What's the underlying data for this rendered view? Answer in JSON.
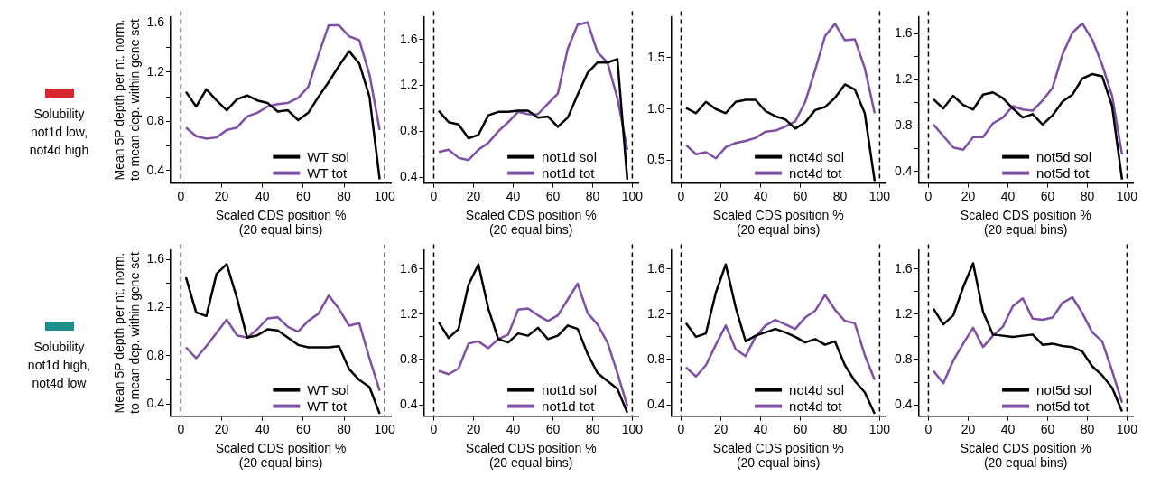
{
  "chart_data": [
    {
      "type": "line",
      "ylabel": "Mean 5P depth per nt, norm.\nto mean dep. within gene set",
      "xlabel": "Scaled CDS position %\n(20 equal bins)",
      "annotations": [
        "Solubility\nnot1d low,\nnot4d high"
      ],
      "x": [
        2.5,
        7.5,
        12.5,
        17.5,
        22.5,
        27.5,
        32.5,
        37.5,
        42.5,
        47.5,
        52.5,
        57.5,
        62.5,
        67.5,
        72.5,
        77.5,
        82.5,
        87.5,
        92.5,
        97.5
      ],
      "xlim": [
        -5,
        103
      ],
      "xticks": [
        0,
        20,
        40,
        60,
        80,
        100
      ],
      "ylim": [
        0.3,
        1.65
      ],
      "yticks": [
        0.4,
        {
          "value": 0.6,
          "label": null
        },
        0.8,
        {
          "value": 1.0,
          "label": null
        },
        1.2,
        {
          "value": 1.4,
          "label": null
        },
        1.6
      ],
      "grid": false,
      "marker": "none",
      "legend": "bottom right",
      "ref_lines": [
        {
          "axis": "x",
          "value": 0,
          "line_style": "dashed",
          "color": "#000000"
        },
        {
          "axis": "x",
          "value": 100,
          "line_style": "dashed",
          "color": "#000000"
        }
      ],
      "series": [
        {
          "name": "WT sol",
          "color": "#000000",
          "values": [
            1.04,
            0.92,
            1.06,
            0.97,
            0.89,
            0.98,
            1.01,
            0.97,
            0.95,
            0.88,
            0.89,
            0.81,
            0.87,
            1.0,
            1.12,
            1.25,
            1.37,
            1.27,
            1.0,
            0.33
          ]
        },
        {
          "name": "WT tot",
          "color": "#7f4fa8",
          "values": [
            0.75,
            0.68,
            0.66,
            0.67,
            0.73,
            0.75,
            0.84,
            0.87,
            0.92,
            0.94,
            0.95,
            0.99,
            1.08,
            1.34,
            1.58,
            1.58,
            1.49,
            1.46,
            1.18,
            0.73
          ]
        }
      ]
    },
    {
      "type": "line",
      "xlabel": "Scaled CDS position %\n(20 equal bins)",
      "x": [
        2.5,
        7.5,
        12.5,
        17.5,
        22.5,
        27.5,
        32.5,
        37.5,
        42.5,
        47.5,
        52.5,
        57.5,
        62.5,
        67.5,
        72.5,
        77.5,
        82.5,
        87.5,
        92.5,
        97.5
      ],
      "xlim": [
        -5,
        103
      ],
      "xticks": [
        0,
        20,
        40,
        60,
        80,
        100
      ],
      "ylim": [
        0.35,
        1.8
      ],
      "yticks": [
        0.4,
        {
          "value": 0.6,
          "label": null
        },
        0.8,
        {
          "value": 1.0,
          "label": null
        },
        1.2,
        {
          "value": 1.4,
          "label": null
        },
        1.6
      ],
      "grid": false,
      "marker": "none",
      "legend": "bottom right",
      "ref_lines": [
        {
          "axis": "x",
          "value": 0,
          "line_style": "dashed",
          "color": "#000000"
        },
        {
          "axis": "x",
          "value": 100,
          "line_style": "dashed",
          "color": "#000000"
        }
      ],
      "series": [
        {
          "name": "not1d sol",
          "color": "#000000",
          "values": [
            0.98,
            0.88,
            0.86,
            0.74,
            0.77,
            0.94,
            0.97,
            0.97,
            0.98,
            0.98,
            0.92,
            0.93,
            0.84,
            0.92,
            1.12,
            1.31,
            1.4,
            1.4,
            1.43,
            0.38
          ]
        },
        {
          "name": "not1d tot",
          "color": "#7f4fa8",
          "values": [
            0.62,
            0.64,
            0.57,
            0.55,
            0.64,
            0.7,
            0.8,
            0.88,
            0.97,
            0.95,
            0.95,
            1.04,
            1.13,
            1.52,
            1.73,
            1.75,
            1.49,
            1.4,
            1.09,
            0.64
          ]
        }
      ]
    },
    {
      "type": "line",
      "xlabel": "Scaled CDS position %\n(20 equal bins)",
      "x": [
        2.5,
        7.5,
        12.5,
        17.5,
        22.5,
        27.5,
        32.5,
        37.5,
        42.5,
        47.5,
        52.5,
        57.5,
        62.5,
        67.5,
        72.5,
        77.5,
        82.5,
        87.5,
        92.5,
        97.5
      ],
      "xlim": [
        -5,
        103
      ],
      "xticks": [
        0,
        20,
        40,
        60,
        80,
        100
      ],
      "ylim": [
        0.28,
        1.9
      ],
      "yticks": [
        0.5,
        {
          "value": 1.0,
          "label": "1.0"
        },
        1.5
      ],
      "grid": false,
      "marker": "none",
      "legend": "bottom right",
      "ref_lines": [
        {
          "axis": "x",
          "value": 0,
          "line_style": "dashed",
          "color": "#000000"
        },
        {
          "axis": "x",
          "value": 100,
          "line_style": "dashed",
          "color": "#000000"
        }
      ],
      "series": [
        {
          "name": "not4d sol",
          "color": "#000000",
          "values": [
            1.01,
            0.96,
            1.07,
            1.0,
            0.96,
            1.07,
            1.09,
            1.09,
            0.98,
            0.93,
            0.9,
            0.81,
            0.87,
            0.99,
            1.02,
            1.11,
            1.24,
            1.19,
            0.96,
            0.3
          ]
        },
        {
          "name": "not4d tot",
          "color": "#7f4fa8",
          "values": [
            0.65,
            0.56,
            0.58,
            0.52,
            0.63,
            0.67,
            0.69,
            0.72,
            0.78,
            0.79,
            0.83,
            0.88,
            1.07,
            1.38,
            1.71,
            1.83,
            1.67,
            1.68,
            1.4,
            0.96
          ]
        }
      ]
    },
    {
      "type": "line",
      "xlabel": "Scaled CDS position %\n(20 equal bins)",
      "x": [
        2.5,
        7.5,
        12.5,
        17.5,
        22.5,
        27.5,
        32.5,
        37.5,
        42.5,
        47.5,
        52.5,
        57.5,
        62.5,
        67.5,
        72.5,
        77.5,
        82.5,
        87.5,
        92.5,
        97.5
      ],
      "xlim": [
        -5,
        103
      ],
      "xticks": [
        0,
        20,
        40,
        60,
        80,
        100
      ],
      "ylim": [
        0.3,
        1.75
      ],
      "yticks": [
        0.4,
        {
          "value": 0.6,
          "label": null
        },
        0.8,
        {
          "value": 1.0,
          "label": null
        },
        1.2,
        {
          "value": 1.4,
          "label": null
        },
        1.6
      ],
      "grid": false,
      "marker": "none",
      "legend": "bottom right",
      "ref_lines": [
        {
          "axis": "x",
          "value": 0,
          "line_style": "dashed",
          "color": "#000000"
        },
        {
          "axis": "x",
          "value": 100,
          "line_style": "dashed",
          "color": "#000000"
        }
      ],
      "series": [
        {
          "name": "not5d sol",
          "color": "#000000",
          "values": [
            1.03,
            0.95,
            1.06,
            0.98,
            0.94,
            1.07,
            1.09,
            1.04,
            0.95,
            0.87,
            0.9,
            0.81,
            0.89,
            1.01,
            1.07,
            1.21,
            1.25,
            1.23,
            0.97,
            0.33
          ]
        },
        {
          "name": "not5d tot",
          "color": "#7f4fa8",
          "values": [
            0.81,
            0.71,
            0.61,
            0.59,
            0.7,
            0.7,
            0.82,
            0.87,
            0.97,
            0.94,
            0.93,
            1.02,
            1.13,
            1.42,
            1.61,
            1.69,
            1.55,
            1.33,
            1.06,
            0.55
          ]
        }
      ]
    },
    {
      "type": "line",
      "ylabel": "Mean 5P depth per nt, norm.\nto mean dep. within gene set",
      "xlabel": "Scaled CDS position %\n(20 equal bins)",
      "annotations": [
        "Solubility\nnot1d high,\nnot4d low"
      ],
      "x": [
        2.5,
        7.5,
        12.5,
        17.5,
        22.5,
        27.5,
        32.5,
        37.5,
        42.5,
        47.5,
        52.5,
        57.5,
        62.5,
        67.5,
        72.5,
        77.5,
        82.5,
        87.5,
        92.5,
        97.5
      ],
      "xlim": [
        -5,
        103
      ],
      "xticks": [
        0,
        20,
        40,
        60,
        80,
        100
      ],
      "ylim": [
        0.3,
        1.68
      ],
      "yticks": [
        0.4,
        {
          "value": 0.6,
          "label": null
        },
        0.8,
        {
          "value": 1.0,
          "label": null
        },
        1.2,
        {
          "value": 1.4,
          "label": null
        },
        1.6
      ],
      "grid": false,
      "marker": "none",
      "legend": "bottom right",
      "ref_lines": [
        {
          "axis": "x",
          "value": 0,
          "line_style": "dashed",
          "color": "#000000"
        },
        {
          "axis": "x",
          "value": 100,
          "line_style": "dashed",
          "color": "#000000"
        }
      ],
      "series": [
        {
          "name": "WT sol",
          "color": "#000000",
          "values": [
            1.45,
            1.16,
            1.13,
            1.48,
            1.56,
            1.28,
            0.95,
            0.97,
            1.02,
            1.01,
            0.95,
            0.89,
            0.87,
            0.87,
            0.87,
            0.88,
            0.69,
            0.6,
            0.54,
            0.32
          ]
        },
        {
          "name": "WT tot",
          "color": "#7f4fa8",
          "values": [
            0.87,
            0.78,
            0.88,
            0.99,
            1.1,
            0.97,
            0.95,
            1.02,
            1.11,
            1.12,
            1.04,
            1.0,
            1.09,
            1.15,
            1.3,
            1.19,
            1.05,
            1.07,
            0.78,
            0.51
          ]
        }
      ]
    },
    {
      "type": "line",
      "xlabel": "Scaled CDS position %\n(20 equal bins)",
      "x": [
        2.5,
        7.5,
        12.5,
        17.5,
        22.5,
        27.5,
        32.5,
        37.5,
        42.5,
        47.5,
        52.5,
        57.5,
        62.5,
        67.5,
        72.5,
        77.5,
        82.5,
        87.5,
        92.5,
        97.5
      ],
      "xlim": [
        -5,
        103
      ],
      "xticks": [
        0,
        20,
        40,
        60,
        80,
        100
      ],
      "ylim": [
        0.3,
        1.77
      ],
      "yticks": [
        0.4,
        {
          "value": 0.6,
          "label": null
        },
        0.8,
        {
          "value": 1.0,
          "label": null
        },
        1.2,
        {
          "value": 1.4,
          "label": null
        },
        1.6
      ],
      "grid": false,
      "marker": "none",
      "legend": "bottom right",
      "ref_lines": [
        {
          "axis": "x",
          "value": 0,
          "line_style": "dashed",
          "color": "#000000"
        },
        {
          "axis": "x",
          "value": 100,
          "line_style": "dashed",
          "color": "#000000"
        }
      ],
      "series": [
        {
          "name": "not1d sol",
          "color": "#000000",
          "values": [
            1.13,
            0.99,
            1.07,
            1.46,
            1.64,
            1.25,
            0.98,
            0.95,
            1.03,
            1.01,
            1.08,
            0.98,
            1.01,
            1.1,
            1.07,
            0.85,
            0.68,
            0.61,
            0.54,
            0.33
          ]
        },
        {
          "name": "not1d tot",
          "color": "#7f4fa8",
          "values": [
            0.7,
            0.67,
            0.72,
            0.94,
            0.96,
            0.9,
            0.98,
            1.02,
            1.24,
            1.25,
            1.19,
            1.14,
            1.19,
            1.33,
            1.47,
            1.21,
            1.11,
            0.95,
            0.68,
            0.39
          ]
        }
      ]
    },
    {
      "type": "line",
      "xlabel": "Scaled CDS position %\n(20 equal bins)",
      "x": [
        2.5,
        7.5,
        12.5,
        17.5,
        22.5,
        27.5,
        32.5,
        37.5,
        42.5,
        47.5,
        52.5,
        57.5,
        62.5,
        67.5,
        72.5,
        77.5,
        82.5,
        87.5,
        92.5,
        97.5
      ],
      "xlim": [
        -5,
        103
      ],
      "xticks": [
        0,
        20,
        40,
        60,
        80,
        100
      ],
      "ylim": [
        0.3,
        1.77
      ],
      "yticks": [
        0.4,
        {
          "value": 0.6,
          "label": null
        },
        0.8,
        {
          "value": 1.0,
          "label": null
        },
        1.2,
        {
          "value": 1.4,
          "label": null
        },
        1.6
      ],
      "grid": false,
      "marker": "none",
      "legend": "bottom right",
      "ref_lines": [
        {
          "axis": "x",
          "value": 0,
          "line_style": "dashed",
          "color": "#000000"
        },
        {
          "axis": "x",
          "value": 100,
          "line_style": "dashed",
          "color": "#000000"
        }
      ],
      "series": [
        {
          "name": "not4d sol",
          "color": "#000000",
          "values": [
            1.12,
            1.0,
            1.03,
            1.39,
            1.64,
            1.26,
            0.96,
            1.01,
            1.04,
            1.07,
            1.04,
            1.0,
            0.95,
            0.98,
            0.93,
            0.96,
            0.75,
            0.61,
            0.51,
            0.32
          ]
        },
        {
          "name": "not4d tot",
          "color": "#7f4fa8",
          "values": [
            0.73,
            0.65,
            0.75,
            0.93,
            1.1,
            0.89,
            0.83,
            1.0,
            1.1,
            1.15,
            1.11,
            1.07,
            1.17,
            1.23,
            1.37,
            1.24,
            1.14,
            1.12,
            0.84,
            0.62
          ]
        }
      ]
    },
    {
      "type": "line",
      "xlabel": "Scaled CDS position %\n(20 equal bins)",
      "x": [
        2.5,
        7.5,
        12.5,
        17.5,
        22.5,
        27.5,
        32.5,
        37.5,
        42.5,
        47.5,
        52.5,
        57.5,
        62.5,
        67.5,
        72.5,
        77.5,
        82.5,
        87.5,
        92.5,
        97.5
      ],
      "xlim": [
        -5,
        103
      ],
      "xticks": [
        0,
        20,
        40,
        60,
        80,
        100
      ],
      "ylim": [
        0.3,
        1.77
      ],
      "yticks": [
        0.4,
        {
          "value": 0.6,
          "label": null
        },
        0.8,
        {
          "value": 1.0,
          "label": null
        },
        1.2,
        {
          "value": 1.4,
          "label": null
        },
        1.6
      ],
      "grid": false,
      "marker": "none",
      "legend": "bottom right",
      "ref_lines": [
        {
          "axis": "x",
          "value": 0,
          "line_style": "dashed",
          "color": "#000000"
        },
        {
          "axis": "x",
          "value": 100,
          "line_style": "dashed",
          "color": "#000000"
        }
      ],
      "series": [
        {
          "name": "not5d sol",
          "color": "#000000",
          "values": [
            1.25,
            1.11,
            1.19,
            1.44,
            1.65,
            1.22,
            1.02,
            1.01,
            1.0,
            1.01,
            1.02,
            0.93,
            0.94,
            0.92,
            0.91,
            0.87,
            0.74,
            0.66,
            0.55,
            0.34
          ]
        },
        {
          "name": "not5d tot",
          "color": "#7f4fa8",
          "values": [
            0.7,
            0.59,
            0.79,
            0.94,
            1.08,
            0.91,
            1.01,
            1.09,
            1.27,
            1.34,
            1.16,
            1.15,
            1.17,
            1.3,
            1.35,
            1.21,
            1.04,
            0.96,
            0.7,
            0.42
          ]
        }
      ]
    }
  ]
}
